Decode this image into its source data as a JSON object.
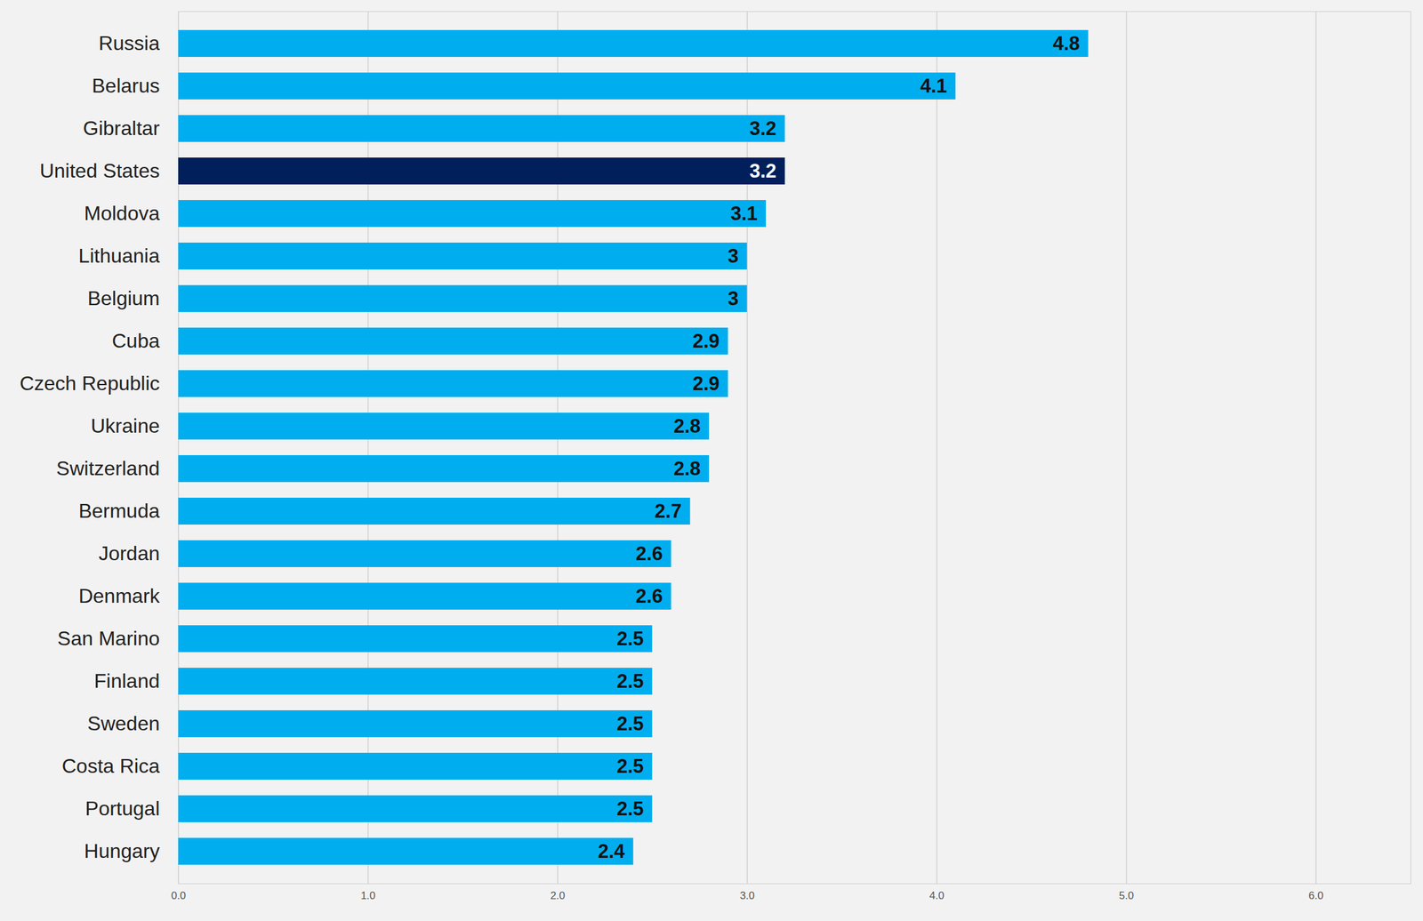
{
  "chart_data": {
    "type": "bar",
    "orientation": "horizontal",
    "categories": [
      "Russia",
      "Belarus",
      "Gibraltar",
      "United States",
      "Moldova",
      "Lithuania",
      "Belgium",
      "Cuba",
      "Czech Republic",
      "Ukraine",
      "Switzerland",
      "Bermuda",
      "Jordan",
      "Denmark",
      "San Marino",
      "Finland",
      "Sweden",
      "Costa Rica",
      "Portugal",
      "Hungary"
    ],
    "values": [
      4.8,
      4.1,
      3.2,
      3.2,
      3.1,
      3,
      3,
      2.9,
      2.9,
      2.8,
      2.8,
      2.7,
      2.6,
      2.6,
      2.5,
      2.5,
      2.5,
      2.5,
      2.5,
      2.4
    ],
    "colors": [
      "#00aeef",
      "#00aeef",
      "#00aeef",
      "#001f5b",
      "#00aeef",
      "#00aeef",
      "#00aeef",
      "#00aeef",
      "#00aeef",
      "#00aeef",
      "#00aeef",
      "#00aeef",
      "#00aeef",
      "#00aeef",
      "#00aeef",
      "#00aeef",
      "#00aeef",
      "#00aeef",
      "#00aeef",
      "#00aeef"
    ],
    "xlim": [
      0,
      6.5
    ],
    "xticks": [
      0,
      1,
      2,
      3,
      4,
      5,
      6
    ],
    "grid": true,
    "data_labels": true
  }
}
